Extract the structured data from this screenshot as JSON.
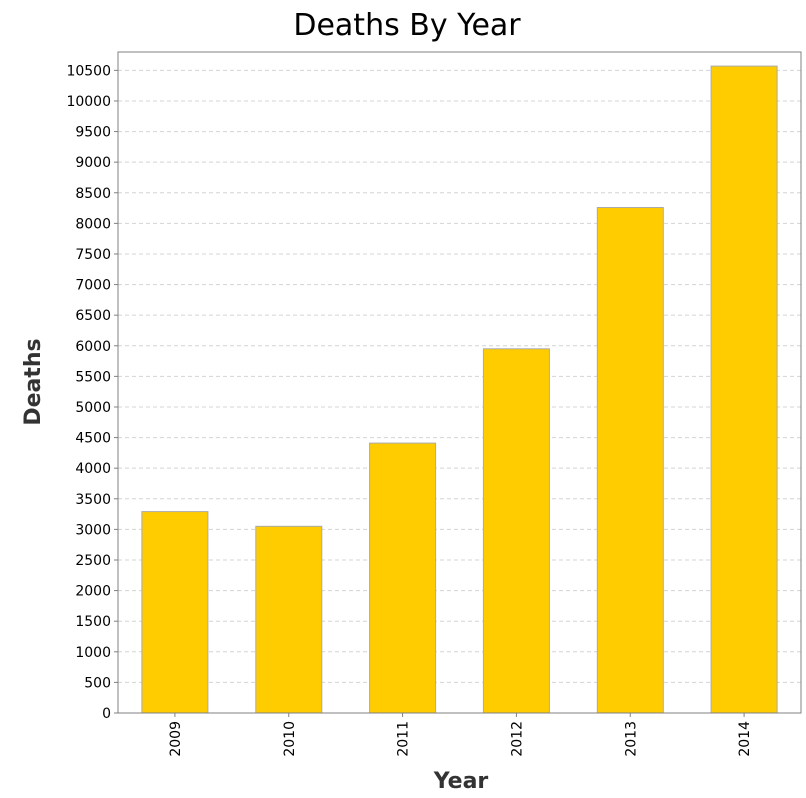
{
  "chart_data": {
    "type": "bar",
    "title": "Deaths By Year",
    "xlabel": "Year",
    "ylabel": "Deaths",
    "categories": [
      "2009",
      "2010",
      "2011",
      "2012",
      "2013",
      "2014"
    ],
    "values": [
      3290,
      3050,
      4410,
      5950,
      8260,
      10570
    ],
    "ylim": [
      0,
      10800
    ],
    "ytick_step": 500,
    "grid": true,
    "legend": "none",
    "colors": {
      "bar_fill": "#FFCC00",
      "bar_stroke": "#AAAAAA",
      "grid": "#D4D4D4",
      "plot_border": "#808080"
    }
  }
}
